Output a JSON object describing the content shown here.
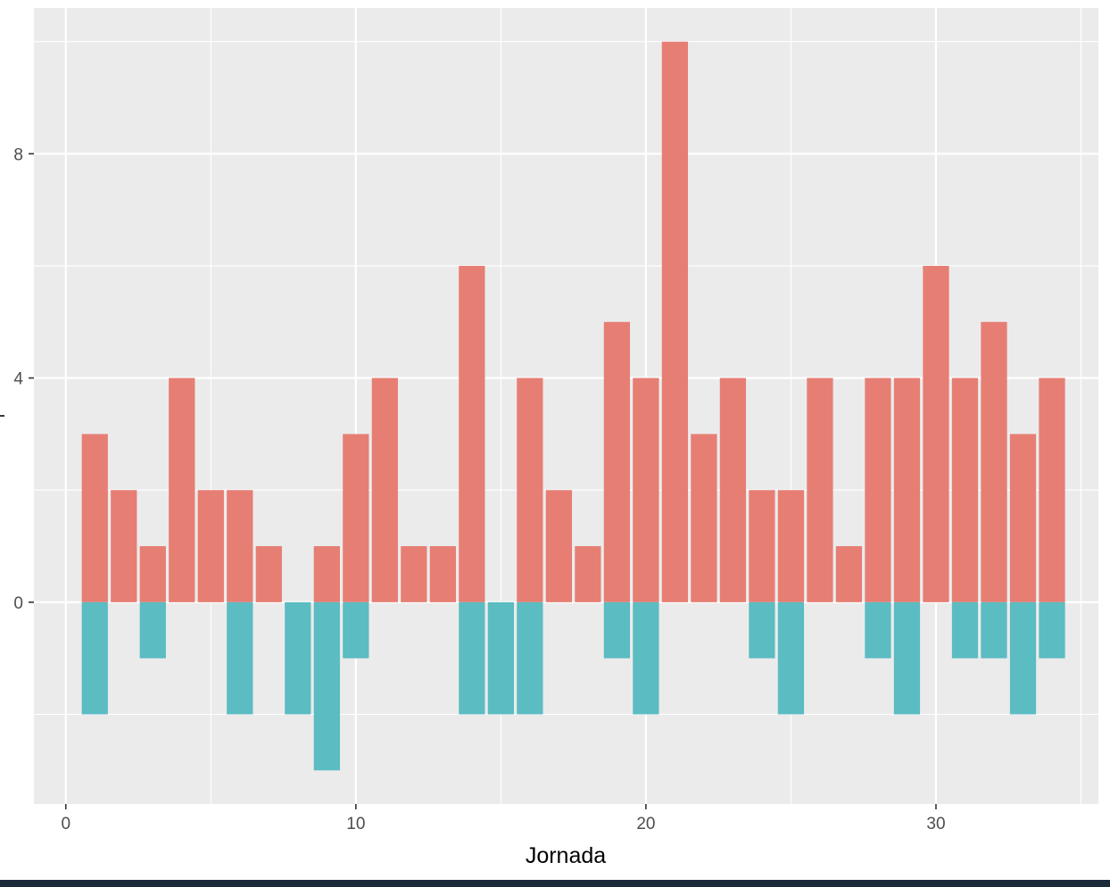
{
  "chart_data": {
    "type": "bar",
    "xlabel": "Jornada",
    "ylabel": "l",
    "x": [
      1,
      2,
      3,
      4,
      5,
      6,
      7,
      8,
      9,
      10,
      11,
      12,
      13,
      14,
      15,
      16,
      17,
      18,
      19,
      20,
      21,
      22,
      23,
      24,
      25,
      26,
      27,
      28,
      29,
      30,
      31,
      32,
      33,
      34
    ],
    "series": [
      {
        "values": [
          3,
          2,
          1,
          4,
          2,
          2,
          1,
          0,
          1,
          3,
          4,
          1,
          1,
          6,
          0,
          4,
          2,
          1,
          5,
          4,
          10,
          3,
          4,
          2,
          2,
          4,
          1,
          4,
          4,
          6,
          4,
          5,
          3,
          4
        ]
      },
      {
        "values": [
          -2,
          0,
          -1,
          0,
          0,
          -2,
          0,
          -2,
          -3,
          -1,
          0,
          0,
          0,
          -2,
          -2,
          -2,
          0,
          0,
          -1,
          -2,
          0,
          0,
          0,
          -1,
          -2,
          0,
          0,
          -1,
          -2,
          0,
          -1,
          -1,
          -2,
          -1
        ]
      }
    ],
    "xlim": [
      -1.1,
      35.6
    ],
    "ylim": [
      -3.6,
      10.6
    ],
    "x_ticks": [
      0,
      10,
      20,
      30
    ],
    "y_ticks": [
      0,
      4,
      8
    ],
    "grid": true,
    "colors": {
      "positive": "#E67E74",
      "negative": "#5BBCC2",
      "panel": "#EBEBEB",
      "grid": "#FFFFFF"
    }
  }
}
